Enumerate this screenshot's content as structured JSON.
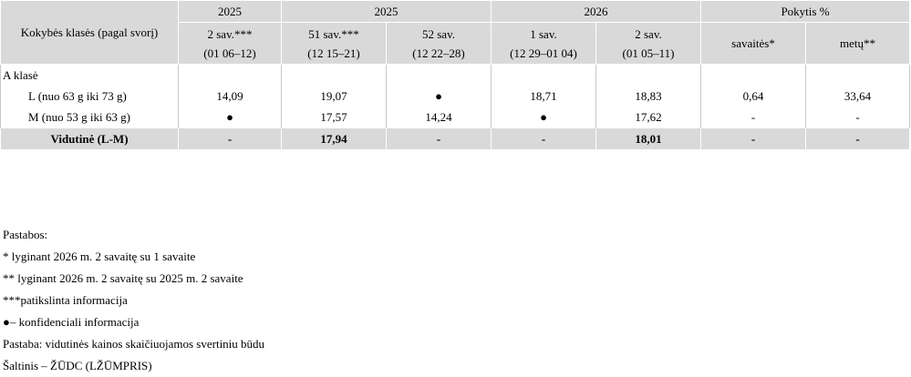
{
  "table": {
    "header": {
      "row1": [
        "Kokybės klasės (pagal svorį)",
        "2025",
        "2025",
        "2026",
        "Pokytis %"
      ],
      "row2": [
        [
          "2 sav.***",
          "(01 06–12)"
        ],
        [
          "51 sav.***",
          "(12 15–21)"
        ],
        [
          "52 sav.",
          "(12 22–28)"
        ],
        [
          "1 sav.",
          "(12 29–01 04)"
        ],
        [
          "2 sav.",
          "(01 05–11)"
        ],
        [
          "savaitės*"
        ],
        [
          "metų**"
        ]
      ]
    },
    "rows": [
      [
        "A klasė"
      ],
      [
        "L (nuo 63 g iki 73 g)",
        "14,09",
        "19,07",
        "●",
        "18,71",
        "18,83",
        "0,64",
        "33,64"
      ],
      [
        "M (nuo 53 g iki 63 g)",
        "●",
        "17,57",
        "14,24",
        "●",
        "17,62",
        "-",
        "-"
      ],
      [
        "Vidutinė (L-M)",
        "-",
        "17,94",
        "-",
        "-",
        "18,01",
        "-",
        "-"
      ]
    ]
  },
  "notes": [
    "Pastabos:",
    "* lyginant 2026 m. 2 savaitę su 1 savaite",
    "** lyginant 2026 m. 2 savaitę su 2025 m. 2 savaite",
    "***patikslinta informacija",
    "●– konfidenciali informacija",
    "Pastaba: vidutinės kainos skaičiuojamos svertiniu būdu",
    "Šaltinis – ŽŪDC (LŽŪMPRIS)"
  ]
}
